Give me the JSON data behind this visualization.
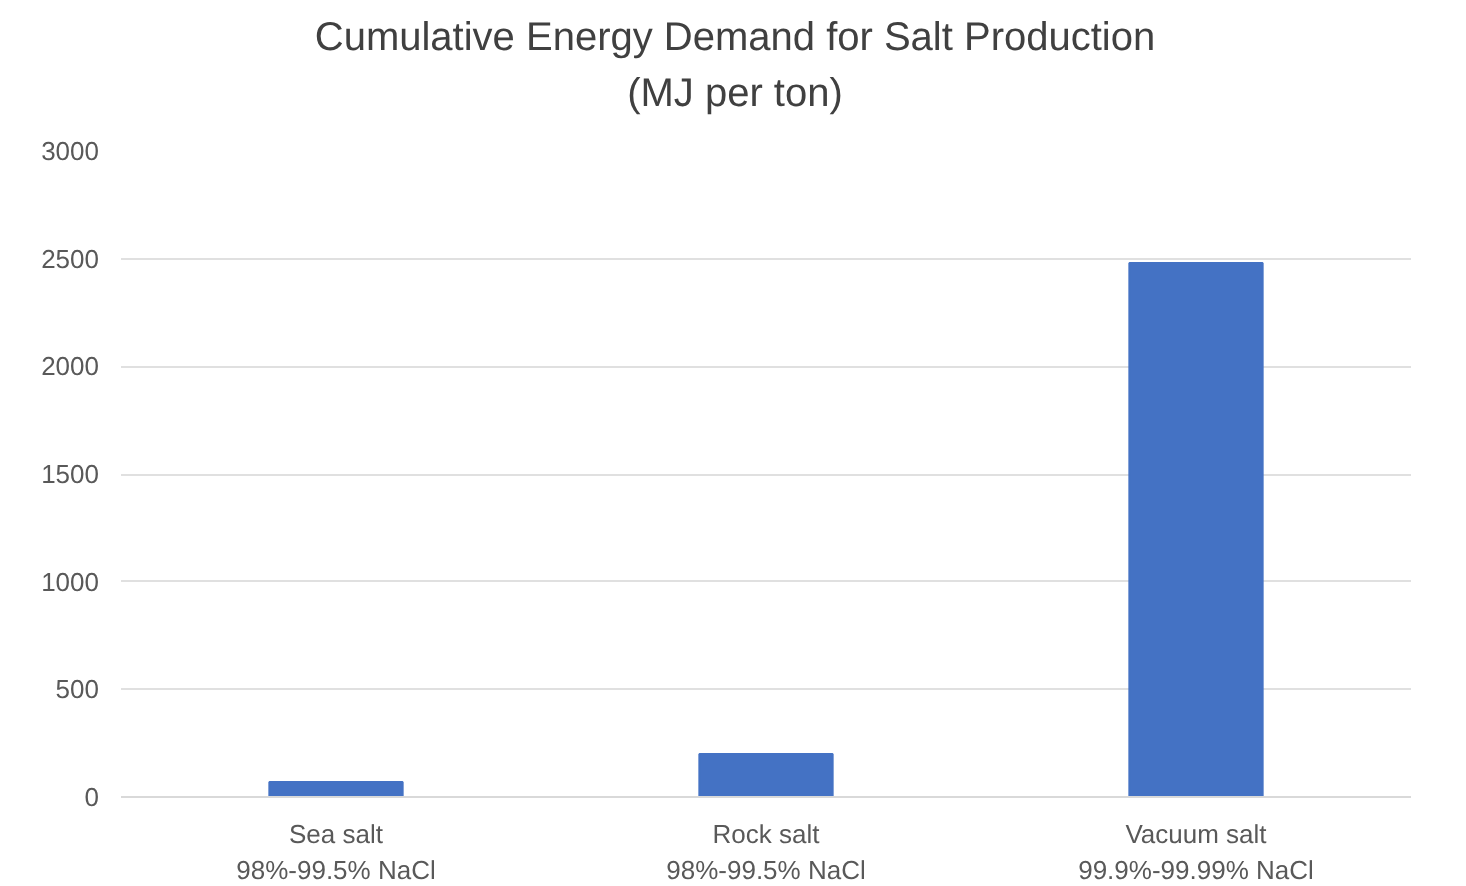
{
  "chart_data": {
    "type": "bar",
    "title": "Cumulative Energy Demand for Salt Production\n(MJ per ton)",
    "categories": [
      "Sea salt\n98%-99.5% NaCl",
      "Rock salt\n98%-99.5% NaCl",
      "Vacuum salt\n99.9%-99.99% NaCl"
    ],
    "values": [
      70,
      200,
      2480
    ],
    "color": "#4472c4",
    "ylim": [
      0,
      3000
    ],
    "yticks": [
      0,
      500,
      1000,
      1500,
      2000,
      2500,
      3000
    ],
    "grid": "y"
  }
}
